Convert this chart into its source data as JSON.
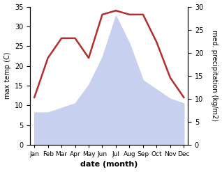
{
  "months": [
    "Jan",
    "Feb",
    "Mar",
    "Apr",
    "May",
    "Jun",
    "Jul",
    "Aug",
    "Sep",
    "Oct",
    "Nov",
    "Dec"
  ],
  "temp": [
    12,
    22,
    27,
    27,
    22,
    33,
    34,
    33,
    33,
    26,
    17,
    12
  ],
  "precip": [
    7,
    7,
    8,
    9,
    13,
    19,
    28,
    22,
    14,
    12,
    10,
    9
  ],
  "temp_color": "#b03030",
  "precip_fill_color": "#c8d0f0",
  "left_label": "max temp (C)",
  "right_label": "med. precipitation (kg/m2)",
  "xlabel": "date (month)",
  "left_ylim": [
    0,
    35
  ],
  "right_ylim": [
    0,
    30
  ],
  "left_yticks": [
    0,
    5,
    10,
    15,
    20,
    25,
    30,
    35
  ],
  "right_yticks": [
    0,
    5,
    10,
    15,
    20,
    25,
    30
  ],
  "background_color": "#ffffff"
}
